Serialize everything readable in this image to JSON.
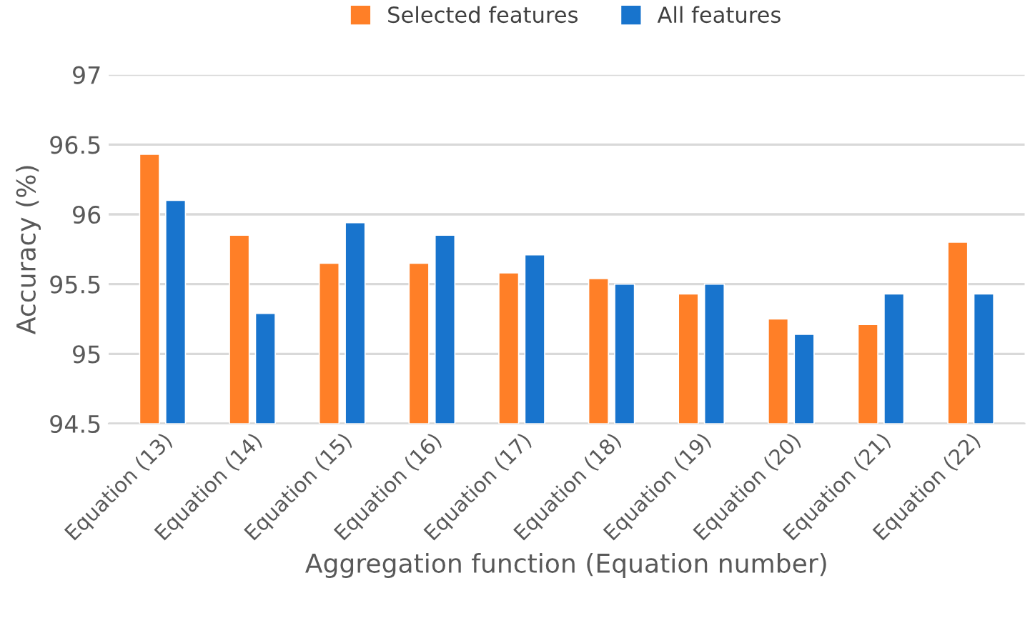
{
  "chart_data": {
    "type": "bar",
    "xlabel": "Aggregation function (Equation number)",
    "ylabel": "Accuracy (%)",
    "categories": [
      "Equation (13)",
      "Equation (14)",
      "Equation (15)",
      "Equation (16)",
      "Equation (17)",
      "Equation (18)",
      "Equation (19)",
      "Equation (20)",
      "Equation (21)",
      "Equation (22)"
    ],
    "series": [
      {
        "name": "Selected features",
        "color": "#ff7f27",
        "values": [
          96.43,
          95.85,
          95.65,
          95.65,
          95.58,
          95.54,
          95.43,
          95.25,
          95.21,
          95.8
        ]
      },
      {
        "name": "All features",
        "color": "#1874cd",
        "values": [
          96.1,
          95.29,
          95.94,
          95.85,
          95.71,
          95.5,
          95.5,
          95.14,
          95.43,
          95.43
        ]
      }
    ],
    "ylim": [
      94.5,
      97
    ],
    "yticks": [
      94.5,
      95,
      95.5,
      96,
      96.5,
      97
    ],
    "grid": "y",
    "legend": "top"
  }
}
